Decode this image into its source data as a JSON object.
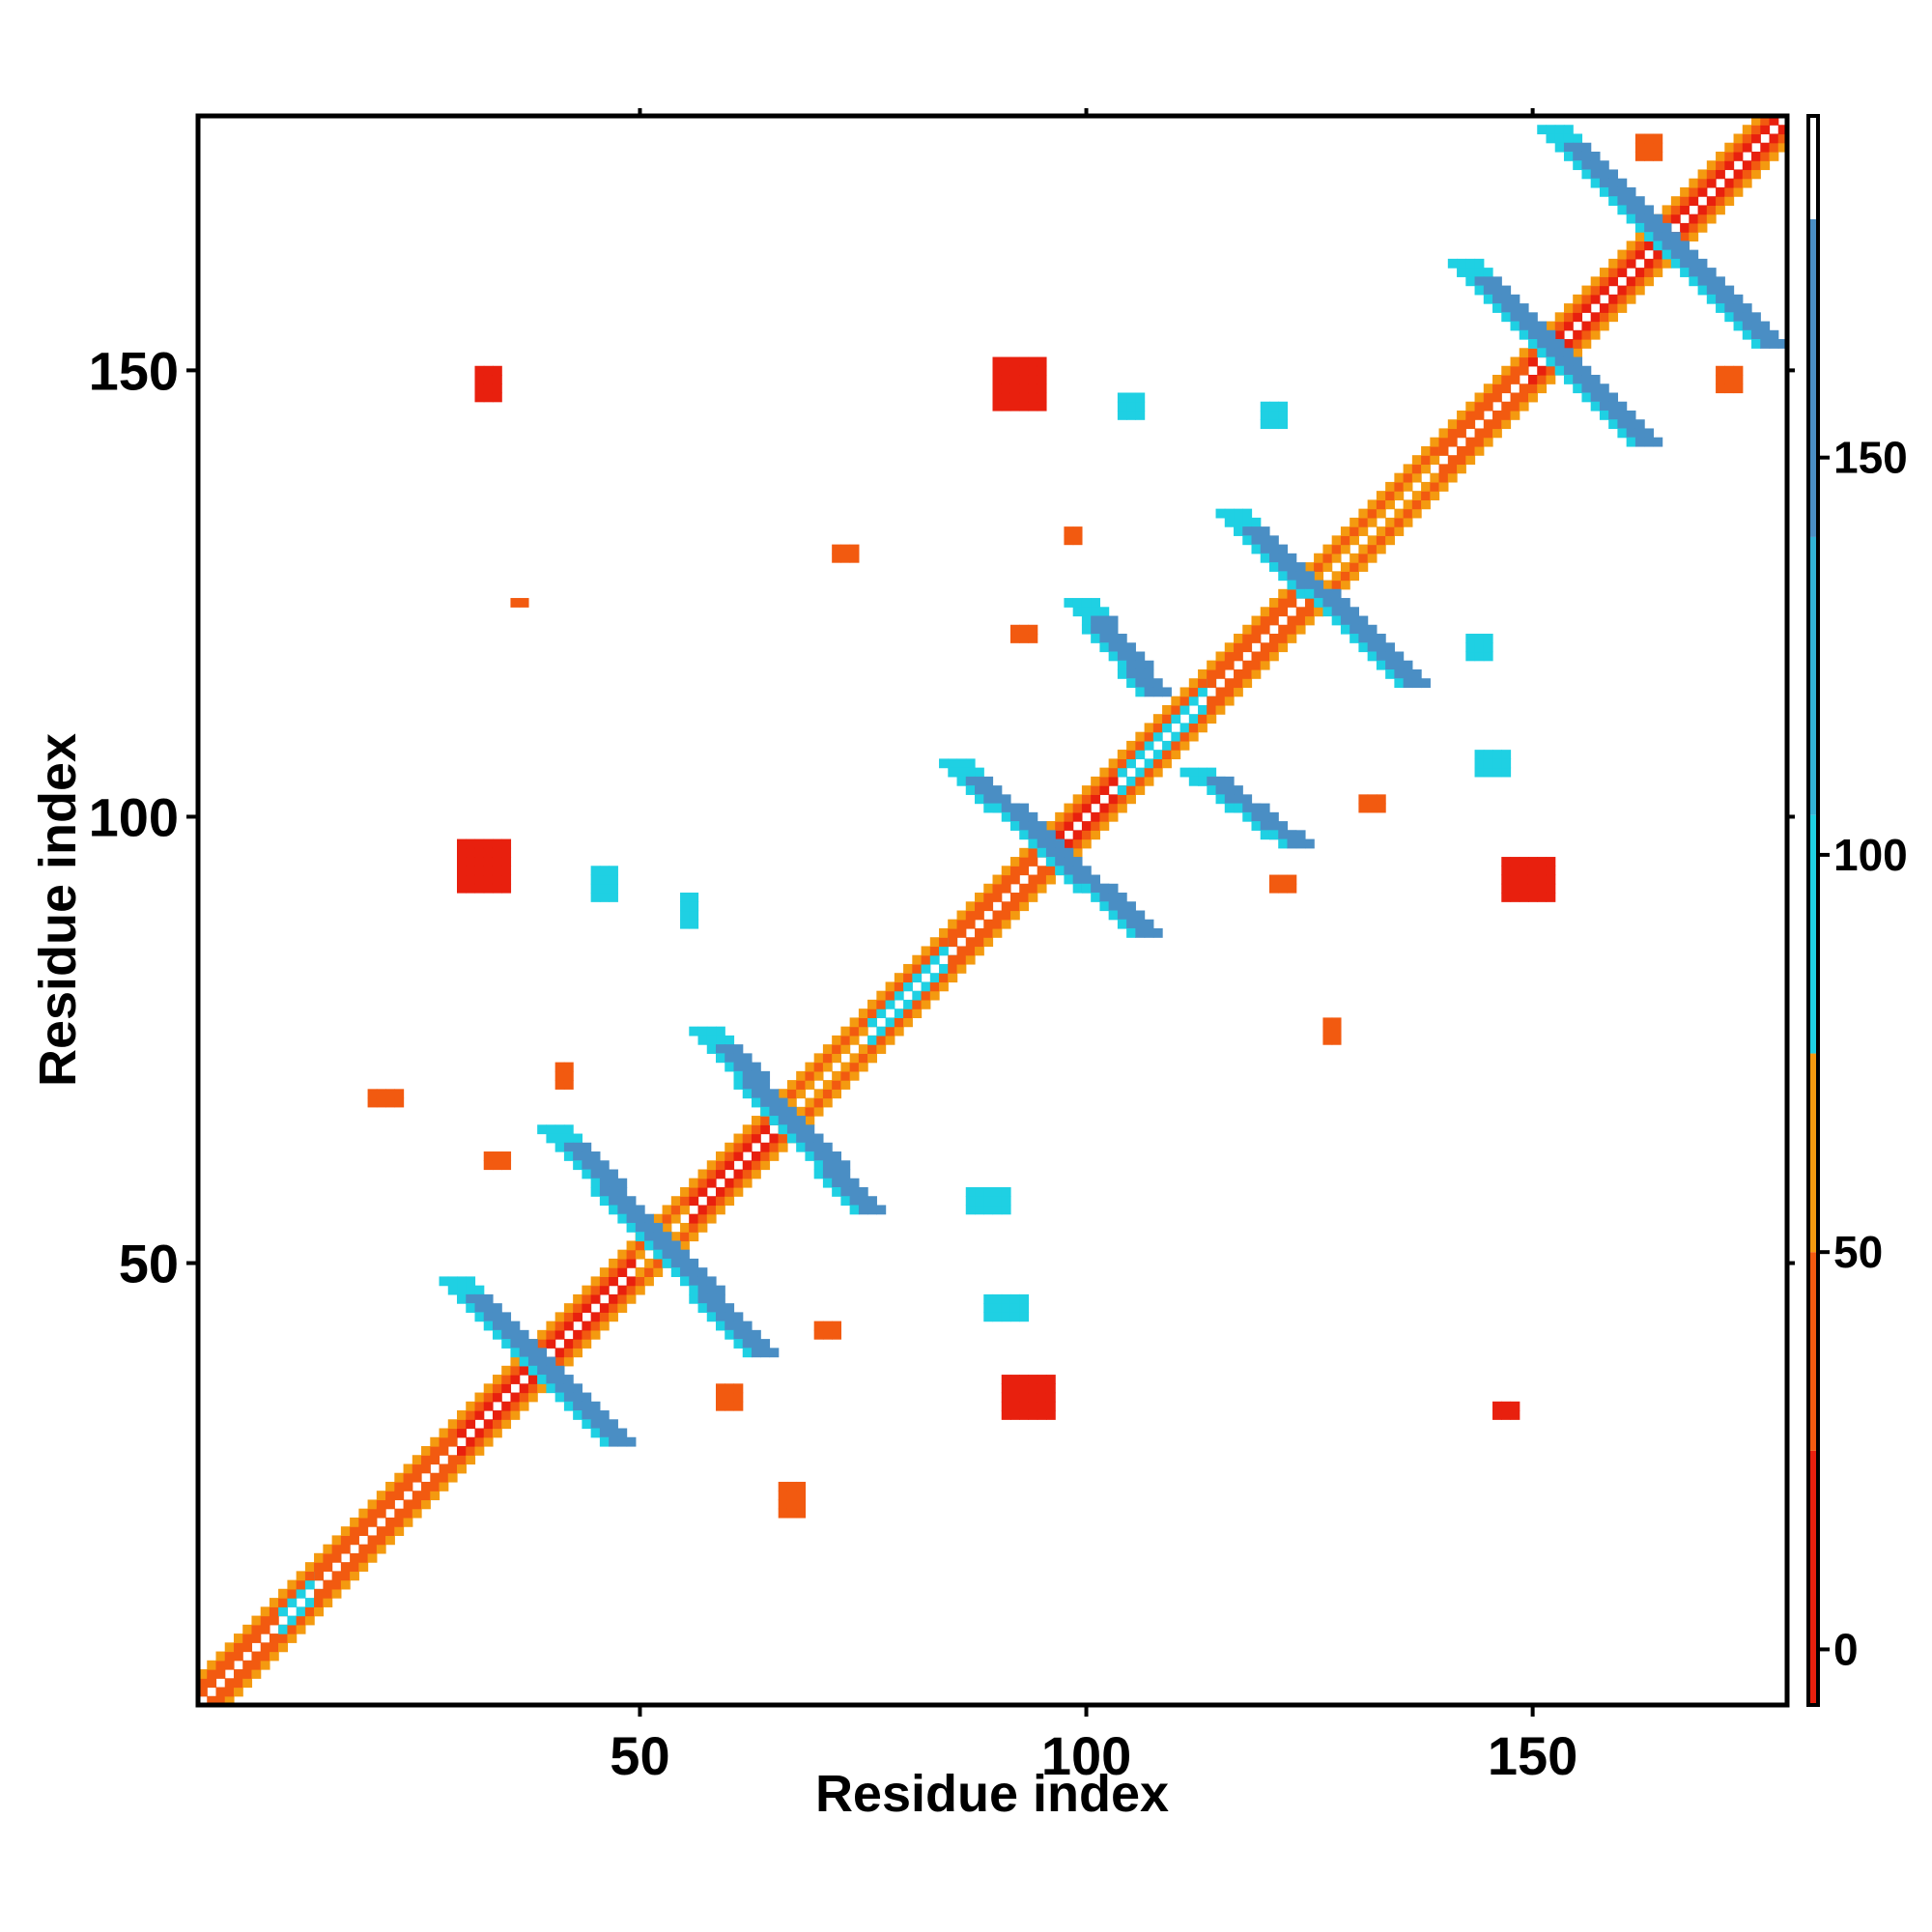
{
  "chart_data": {
    "type": "heatmap",
    "title": "",
    "xlabel": "Residue index",
    "ylabel": "Residue index",
    "xlim": [
      1,
      178
    ],
    "ylim": [
      1,
      178
    ],
    "x_ticks": [
      "50",
      "100",
      "150"
    ],
    "y_ticks": [
      "50",
      "100",
      "150"
    ],
    "x_tick_values": [
      50,
      100,
      150
    ],
    "y_tick_values": [
      50,
      100,
      150
    ],
    "colorbar": {
      "ticks": [
        "0",
        "50",
        "100",
        "150"
      ],
      "tick_values": [
        0,
        50,
        100,
        150
      ],
      "range": [
        -7,
        193
      ],
      "bands": [
        {
          "from": -7,
          "to": 25,
          "color": "#e8200e"
        },
        {
          "from": 25,
          "to": 50,
          "color": "#f25a10"
        },
        {
          "from": 50,
          "to": 75,
          "color": "#f49a10"
        },
        {
          "from": 75,
          "to": 105,
          "color": "#1fd0e3"
        },
        {
          "from": 105,
          "to": 140,
          "color": "#32b2d6"
        },
        {
          "from": 140,
          "to": 180,
          "color": "#4a8ec4"
        },
        {
          "from": 180,
          "to": 193,
          "color": "#ffffff"
        }
      ]
    },
    "cell_colors": {
      "red": "#e8200e",
      "orange_red": "#f25a10",
      "orange": "#f49a10",
      "cyan": "#1fd0e3",
      "steel_blue": "#4a8ec4"
    },
    "diagonal": {
      "from": 1,
      "to": 178,
      "segments": [
        {
          "from": 1,
          "to": 10,
          "color": "orange_red"
        },
        {
          "from": 10,
          "to": 14,
          "color": "cyan"
        },
        {
          "from": 14,
          "to": 30,
          "color": "orange_red"
        },
        {
          "from": 30,
          "to": 50,
          "color": "red"
        },
        {
          "from": 50,
          "to": 56,
          "color": "orange"
        },
        {
          "from": 56,
          "to": 66,
          "color": "red"
        },
        {
          "from": 66,
          "to": 76,
          "color": "orange"
        },
        {
          "from": 76,
          "to": 85,
          "color": "cyan"
        },
        {
          "from": 85,
          "to": 96,
          "color": "orange_red"
        },
        {
          "from": 96,
          "to": 104,
          "color": "red"
        },
        {
          "from": 104,
          "to": 114,
          "color": "cyan"
        },
        {
          "from": 114,
          "to": 126,
          "color": "orange_red"
        },
        {
          "from": 126,
          "to": 140,
          "color": "orange"
        },
        {
          "from": 140,
          "to": 150,
          "color": "orange_red"
        },
        {
          "from": 150,
          "to": 178,
          "color": "red"
        }
      ]
    },
    "strands": [
      {
        "x1": 29,
        "y1": 48,
        "x2": 47,
        "y2": 30,
        "color": "steel_blue"
      },
      {
        "x1": 40,
        "y1": 65,
        "x2": 63,
        "y2": 40,
        "color": "steel_blue"
      },
      {
        "x1": 57,
        "y1": 76,
        "x2": 75,
        "y2": 56,
        "color": "steel_blue"
      },
      {
        "x1": 85,
        "y1": 106,
        "x2": 106,
        "y2": 87,
        "color": "steel_blue"
      },
      {
        "x1": 99,
        "y1": 124,
        "x2": 107,
        "y2": 114,
        "color": "steel_blue"
      },
      {
        "x1": 112,
        "y1": 105,
        "x2": 123,
        "y2": 97,
        "color": "steel_blue"
      },
      {
        "x1": 116,
        "y1": 134,
        "x2": 136,
        "y2": 115,
        "color": "steel_blue"
      },
      {
        "x1": 142,
        "y1": 162,
        "x2": 162,
        "y2": 142,
        "color": "steel_blue"
      },
      {
        "x1": 152,
        "y1": 177,
        "x2": 176,
        "y2": 153,
        "color": "steel_blue"
      }
    ],
    "blobs": [
      {
        "x": 32,
        "y": 147,
        "w": 3,
        "h": 4,
        "color": "red"
      },
      {
        "x": 90,
        "y": 146,
        "w": 6,
        "h": 6,
        "color": "red"
      },
      {
        "x": 30,
        "y": 92,
        "w": 6,
        "h": 6,
        "color": "red"
      },
      {
        "x": 147,
        "y": 91,
        "w": 6,
        "h": 5,
        "color": "red"
      },
      {
        "x": 91,
        "y": 33,
        "w": 6,
        "h": 5,
        "color": "red"
      },
      {
        "x": 146,
        "y": 33,
        "w": 3,
        "h": 2,
        "color": "red"
      },
      {
        "x": 104,
        "y": 145,
        "w": 3,
        "h": 3,
        "color": "cyan"
      },
      {
        "x": 120,
        "y": 144,
        "w": 3,
        "h": 3,
        "color": "cyan"
      },
      {
        "x": 143,
        "y": 118,
        "w": 3,
        "h": 3,
        "color": "cyan"
      },
      {
        "x": 144,
        "y": 105,
        "w": 4,
        "h": 3,
        "color": "cyan"
      },
      {
        "x": 45,
        "y": 91,
        "w": 3,
        "h": 4,
        "color": "cyan"
      },
      {
        "x": 55,
        "y": 88,
        "w": 2,
        "h": 4,
        "color": "cyan"
      },
      {
        "x": 87,
        "y": 56,
        "w": 5,
        "h": 3,
        "color": "cyan"
      },
      {
        "x": 89,
        "y": 44,
        "w": 5,
        "h": 3,
        "color": "cyan"
      },
      {
        "x": 72,
        "y": 129,
        "w": 3,
        "h": 2,
        "color": "orange_red"
      },
      {
        "x": 98,
        "y": 131,
        "w": 2,
        "h": 2,
        "color": "orange_red"
      },
      {
        "x": 36,
        "y": 124,
        "w": 2,
        "h": 1,
        "color": "orange_red"
      },
      {
        "x": 92,
        "y": 120,
        "w": 3,
        "h": 2,
        "color": "orange_red"
      },
      {
        "x": 20,
        "y": 68,
        "w": 4,
        "h": 2,
        "color": "orange_red"
      },
      {
        "x": 41,
        "y": 70,
        "w": 2,
        "h": 3,
        "color": "orange_red"
      },
      {
        "x": 33,
        "y": 61,
        "w": 3,
        "h": 2,
        "color": "orange_red"
      },
      {
        "x": 70,
        "y": 42,
        "w": 3,
        "h": 2,
        "color": "orange_red"
      },
      {
        "x": 59,
        "y": 34,
        "w": 3,
        "h": 3,
        "color": "orange_red"
      },
      {
        "x": 66,
        "y": 22,
        "w": 3,
        "h": 4,
        "color": "orange_red"
      },
      {
        "x": 121,
        "y": 92,
        "w": 3,
        "h": 2,
        "color": "orange_red"
      },
      {
        "x": 131,
        "y": 101,
        "w": 3,
        "h": 2,
        "color": "orange_red"
      },
      {
        "x": 127,
        "y": 75,
        "w": 2,
        "h": 3,
        "color": "orange_red"
      },
      {
        "x": 162,
        "y": 174,
        "w": 3,
        "h": 3,
        "color": "orange_red"
      },
      {
        "x": 171,
        "y": 148,
        "w": 3,
        "h": 3,
        "color": "orange_red"
      }
    ]
  }
}
